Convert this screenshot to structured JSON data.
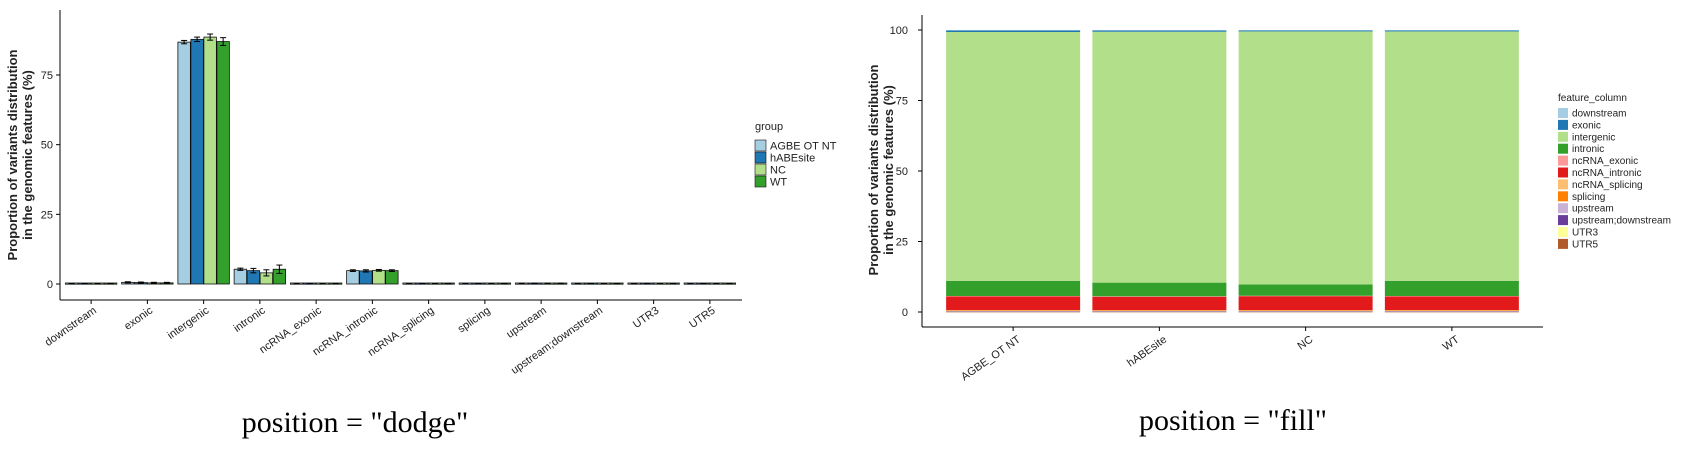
{
  "captions": {
    "left": "position =  \"dodge\"",
    "right": "position =  \"fill\""
  },
  "chart_data": [
    {
      "type": "bar",
      "position": "dodge",
      "ylabel_line1": "Proportion of variants distribution",
      "ylabel_line2": "in the genomic features (%)",
      "ylim": [
        0,
        92
      ],
      "yticks": [
        0,
        25,
        50,
        75
      ],
      "categories": [
        "downstream",
        "exonic",
        "intergenic",
        "intronic",
        "ncRNA_exonic",
        "ncRNA_intronic",
        "ncRNA_splicing",
        "splicing",
        "upstream",
        "upstream;downstream",
        "UTR3",
        "UTR5"
      ],
      "legend_title": "group",
      "legend_position": "right",
      "grid": false,
      "error_bars": true,
      "series": [
        {
          "name": "AGBE OT NT",
          "color": "#a6cee3",
          "values": [
            0.1,
            0.6,
            86.8,
            5.3,
            0.1,
            4.8,
            0.1,
            0.1,
            0.2,
            0.1,
            0.1,
            0.1
          ],
          "errors": [
            0.05,
            0.2,
            0.6,
            0.4,
            0.05,
            0.3,
            0.05,
            0.05,
            0.05,
            0.05,
            0.05,
            0.05
          ]
        },
        {
          "name": "hABEsite",
          "color": "#1f78b4",
          "values": [
            0.1,
            0.5,
            87.8,
            4.8,
            0.1,
            4.7,
            0.1,
            0.1,
            0.2,
            0.1,
            0.1,
            0.1
          ],
          "errors": [
            0.05,
            0.2,
            0.8,
            0.8,
            0.05,
            0.4,
            0.05,
            0.05,
            0.05,
            0.05,
            0.05,
            0.05
          ]
        },
        {
          "name": "NC",
          "color": "#b2df8a",
          "values": [
            0.1,
            0.4,
            88.6,
            4.0,
            0.1,
            4.9,
            0.1,
            0.1,
            0.2,
            0.1,
            0.1,
            0.1
          ],
          "errors": [
            0.05,
            0.2,
            1.1,
            1.1,
            0.05,
            0.3,
            0.05,
            0.05,
            0.05,
            0.05,
            0.05,
            0.05
          ]
        },
        {
          "name": "WT",
          "color": "#33a02c",
          "values": [
            0.1,
            0.4,
            87.0,
            5.3,
            0.1,
            4.8,
            0.1,
            0.1,
            0.2,
            0.1,
            0.1,
            0.1
          ],
          "errors": [
            0.05,
            0.2,
            1.4,
            1.5,
            0.05,
            0.3,
            0.05,
            0.05,
            0.05,
            0.05,
            0.05,
            0.05
          ]
        }
      ]
    },
    {
      "type": "bar",
      "position": "fill",
      "stacked": true,
      "ylabel_line1": "Proportion of variants distribution",
      "ylabel_line2": "in the genomic features (%)",
      "ylim": [
        0,
        100
      ],
      "yticks": [
        0,
        25,
        50,
        75,
        100
      ],
      "categories": [
        "AGBE_OT NT",
        "hABEsite",
        "NC",
        "WT"
      ],
      "legend_title": "feature_column",
      "legend_position": "right",
      "grid": false,
      "series": [
        {
          "name": "downstream",
          "color": "#a6cee3",
          "values": [
            0.1,
            0.1,
            0.1,
            0.1
          ]
        },
        {
          "name": "exonic",
          "color": "#1f78b4",
          "values": [
            0.6,
            0.5,
            0.4,
            0.4
          ]
        },
        {
          "name": "intergenic",
          "color": "#b2df8a",
          "values": [
            87.0,
            88.0,
            88.8,
            87.2
          ]
        },
        {
          "name": "intronic",
          "color": "#33a02c",
          "values": [
            5.3,
            4.8,
            4.0,
            5.3
          ]
        },
        {
          "name": "ncRNA_exonic",
          "color": "#fb9a99",
          "values": [
            0.1,
            0.1,
            0.1,
            0.1
          ]
        },
        {
          "name": "ncRNA_intronic",
          "color": "#e31a1c",
          "values": [
            4.8,
            4.7,
            4.9,
            4.8
          ]
        },
        {
          "name": "ncRNA_splicing",
          "color": "#fdbf6f",
          "values": [
            0.1,
            0.1,
            0.1,
            0.1
          ]
        },
        {
          "name": "splicing",
          "color": "#ff7f00",
          "values": [
            0.1,
            0.1,
            0.1,
            0.1
          ]
        },
        {
          "name": "upstream",
          "color": "#cab2d6",
          "values": [
            0.2,
            0.2,
            0.2,
            0.2
          ]
        },
        {
          "name": "upstream;downstream",
          "color": "#6a3d9a",
          "values": [
            0.1,
            0.1,
            0.1,
            0.1
          ]
        },
        {
          "name": "UTR3",
          "color": "#ffff99",
          "values": [
            0.1,
            0.1,
            0.1,
            0.1
          ]
        },
        {
          "name": "UTR5",
          "color": "#b15928",
          "values": [
            0.1,
            0.1,
            0.1,
            0.1
          ]
        }
      ]
    }
  ]
}
